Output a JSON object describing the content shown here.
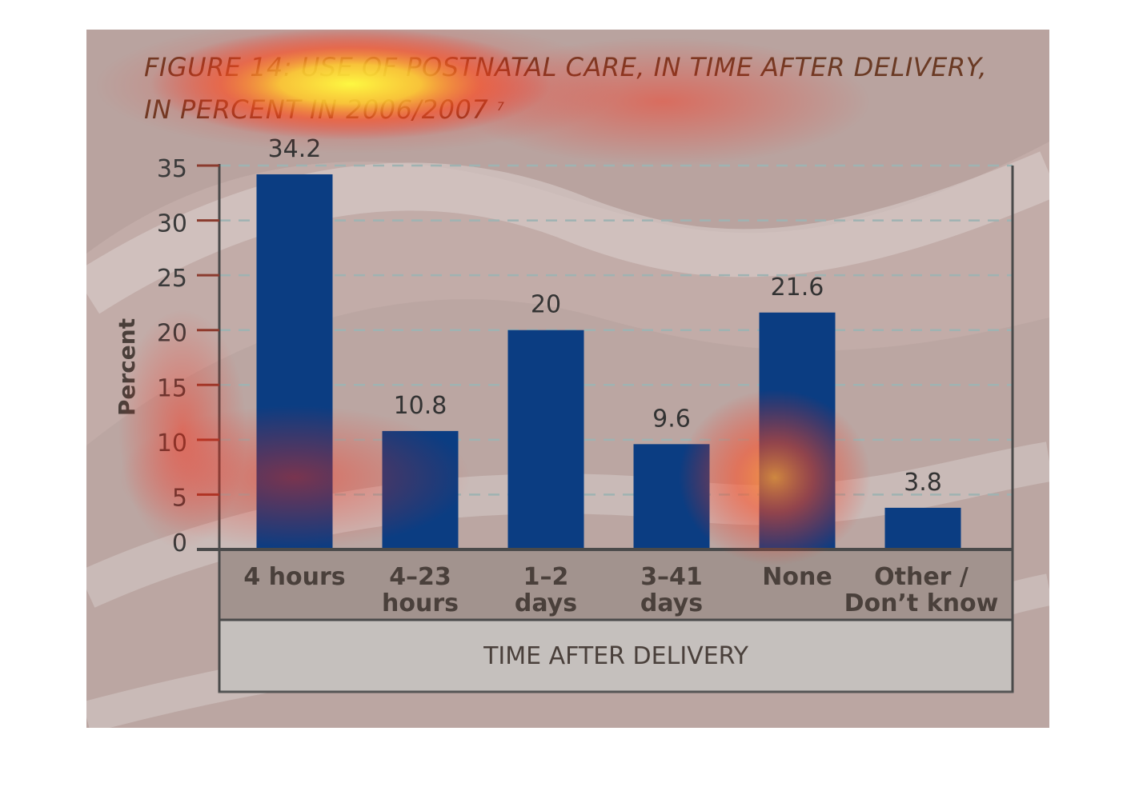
{
  "chart_data": {
    "type": "bar",
    "title_line1": "FIGURE 14: USE OF POSTNATAL CARE, IN TIME AFTER DELIVERY,",
    "title_line2": "IN PERCENT IN 2006/2007",
    "title_footnote": "7",
    "ylabel": "Percent",
    "xlabel": "TIME AFTER DELIVERY",
    "ylim": [
      0,
      35
    ],
    "yticks": [
      0,
      5,
      10,
      15,
      20,
      25,
      30,
      35
    ],
    "categories": [
      [
        "4 hours"
      ],
      [
        "4–23",
        "hours"
      ],
      [
        "1–2",
        "days"
      ],
      [
        "3–41",
        "days"
      ],
      [
        "None"
      ],
      [
        "Other /",
        "Don’t know"
      ]
    ],
    "values": [
      34.2,
      10.8,
      20,
      9.6,
      21.6,
      3.8
    ],
    "bar_color": "#0b3d82",
    "grid": "dashed horizontal"
  }
}
